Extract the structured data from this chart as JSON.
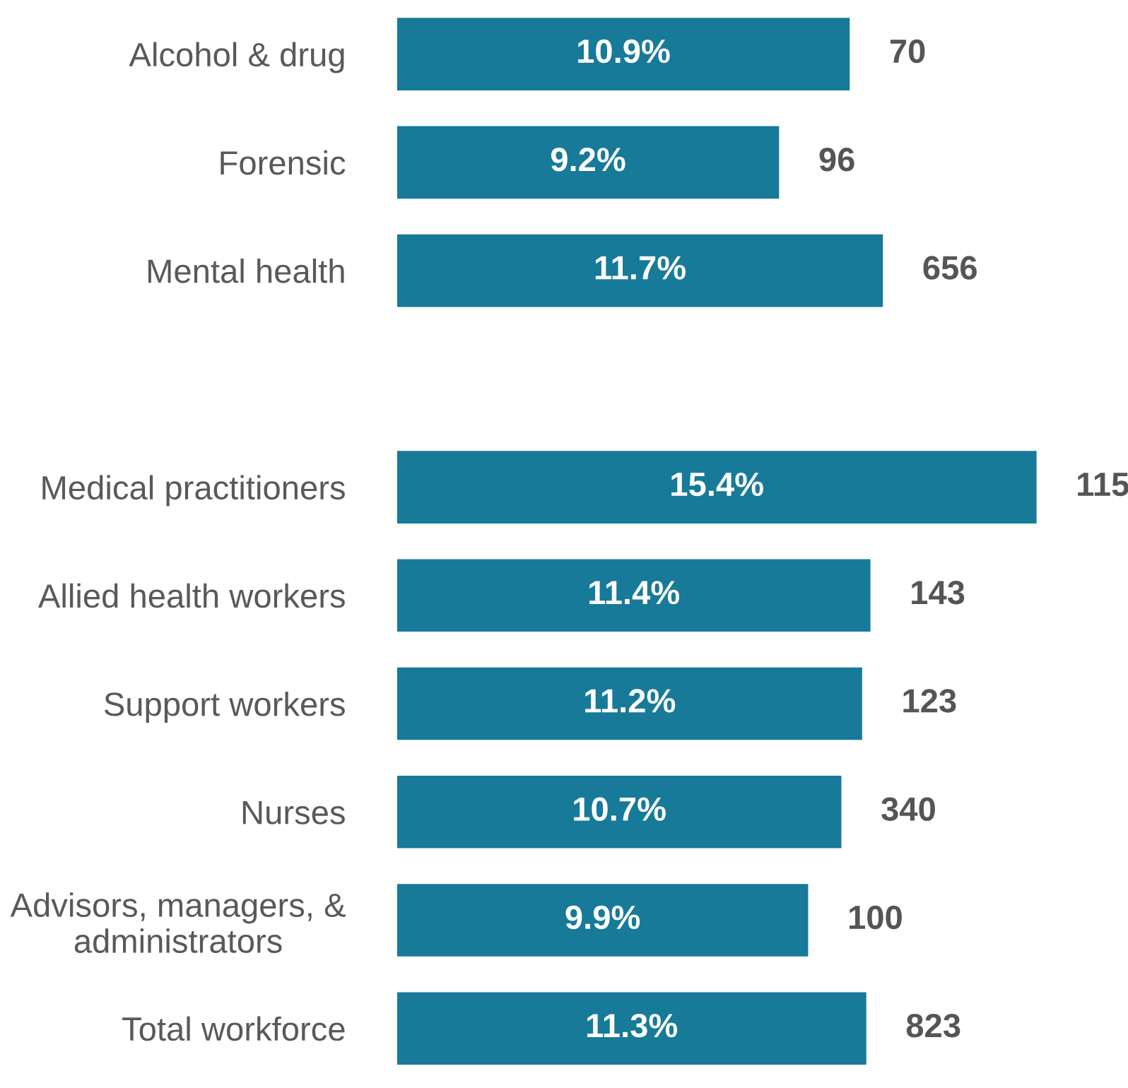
{
  "chart_data": {
    "type": "bar",
    "orientation": "horizontal",
    "categories": [
      "Alcohol & drug",
      "Forensic",
      "Mental health",
      null,
      "Medical practitioners",
      "Allied health workers",
      "Support workers",
      "Nurses",
      "Advisors, managers, &\nadministrators",
      "Total workforce"
    ],
    "values": [
      10.9,
      9.2,
      11.7,
      null,
      15.4,
      11.4,
      11.2,
      10.7,
      9.9,
      11.3
    ],
    "value_labels": [
      "10.9%",
      "9.2%",
      "11.7%",
      null,
      "15.4%",
      "11.4%",
      "11.2%",
      "10.7%",
      "9.9%",
      "11.3%"
    ],
    "color": "#177a99",
    "tick_labels": "y",
    "grid": false,
    "legend": false,
    "annotations": [
      {
        "text": "70",
        "x": 10.9,
        "y": "Alcohol & drug"
      },
      {
        "text": "96",
        "x": 9.2,
        "y": "Forensic"
      },
      {
        "text": "656",
        "x": 11.7,
        "y": "Mental health"
      },
      {
        "text": "115",
        "x": 15.4,
        "y": "Medical practitioners"
      },
      {
        "text": "143",
        "x": 11.4,
        "y": "Allied health workers"
      },
      {
        "text": "123",
        "x": 11.2,
        "y": "Support workers"
      },
      {
        "text": "340",
        "x": 10.7,
        "y": "Nurses"
      },
      {
        "text": "100",
        "x": 9.9,
        "y": "Advisors, managers, &\nadministrators"
      },
      {
        "text": "823",
        "x": 11.3,
        "y": "Total workforce"
      }
    ]
  }
}
